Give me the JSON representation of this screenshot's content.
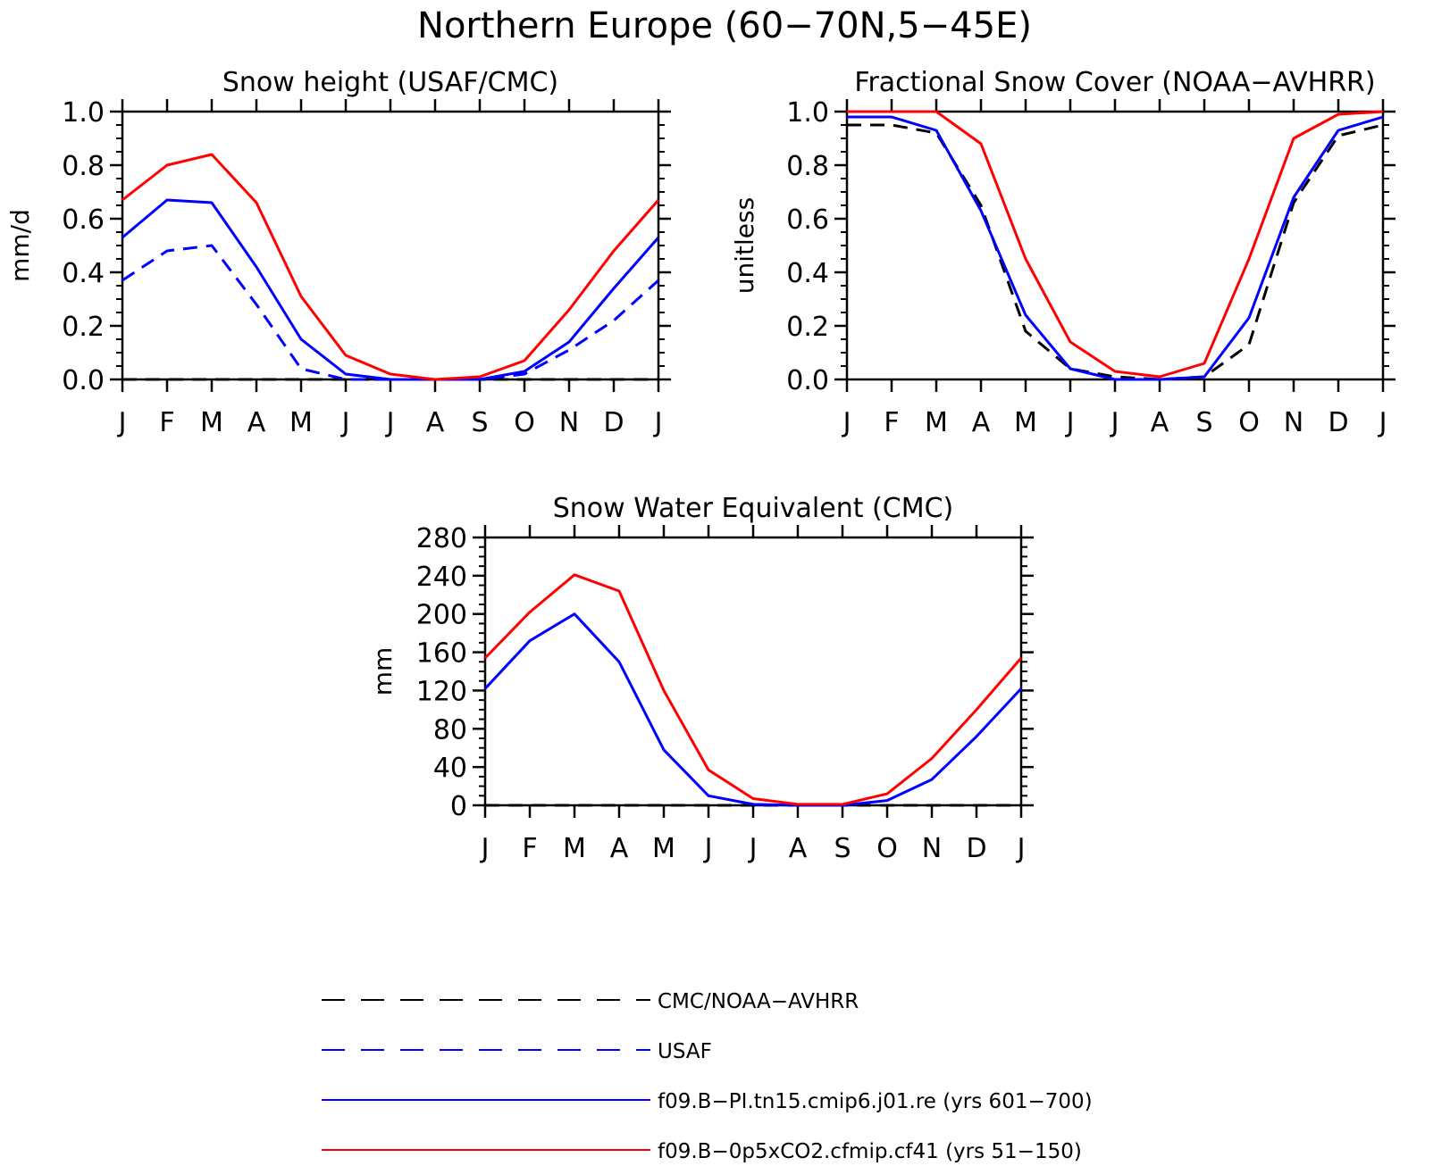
{
  "figure_title": "Northern Europe (60−70N,5−45E)",
  "months": [
    "J",
    "F",
    "M",
    "A",
    "M",
    "J",
    "J",
    "A",
    "S",
    "O",
    "N",
    "D",
    "J"
  ],
  "colors": {
    "observation": "#000000",
    "usaf": "#0000ff",
    "pi_control": "#0000ff",
    "half_co2": "#ff0000"
  },
  "legend": [
    {
      "label": "CMC/NOAA−AVHRR",
      "color": "#000000",
      "style": "dashed"
    },
    {
      "label": "USAF",
      "color": "#0000ff",
      "style": "dashed"
    },
    {
      "label": "f09.B−PI.tn15.cmip6.j01.re (yrs 601−700)",
      "color": "#0000ff",
      "style": "solid"
    },
    {
      "label": "f09.B−0p5xCO2.cfmip.cf41 (yrs 51−150)",
      "color": "#ff0000",
      "style": "solid"
    }
  ],
  "chart_data": [
    {
      "type": "line",
      "title": "Snow height (USAF/CMC)",
      "xlabel": "",
      "ylabel": "mm/d",
      "ylim": [
        0,
        1.0
      ],
      "yticks": [
        "0.0",
        "0.2",
        "0.4",
        "0.6",
        "0.8",
        "1.0"
      ],
      "ytick_values": [
        0,
        0.2,
        0.4,
        0.6,
        0.8,
        1.0
      ],
      "x": [
        "J",
        "F",
        "M",
        "A",
        "M",
        "J",
        "J",
        "A",
        "S",
        "O",
        "N",
        "D",
        "J"
      ],
      "series": [
        {
          "name": "CMC/NOAA−AVHRR",
          "color": "#000000",
          "style": "dashed",
          "values": [
            0,
            0,
            0,
            0,
            0,
            0,
            0,
            0,
            0,
            0,
            0,
            0,
            0
          ]
        },
        {
          "name": "USAF",
          "color": "#0000ff",
          "style": "dashed",
          "values": [
            0.37,
            0.48,
            0.5,
            0.28,
            0.04,
            0.0,
            0.0,
            0.0,
            0.0,
            0.02,
            0.11,
            0.22,
            0.37
          ]
        },
        {
          "name": "f09.B−PI.tn15.cmip6.j01.re (yrs 601−700)",
          "color": "#0000ff",
          "style": "solid",
          "values": [
            0.53,
            0.67,
            0.66,
            0.42,
            0.15,
            0.02,
            0.0,
            0.0,
            0.0,
            0.03,
            0.14,
            0.34,
            0.53
          ]
        },
        {
          "name": "f09.B−0p5xCO2.cfmip.cf41 (yrs 51−150)",
          "color": "#ff0000",
          "style": "solid",
          "values": [
            0.67,
            0.8,
            0.84,
            0.66,
            0.31,
            0.09,
            0.02,
            0.0,
            0.01,
            0.07,
            0.26,
            0.48,
            0.67
          ]
        }
      ]
    },
    {
      "type": "line",
      "title": "Fractional Snow Cover (NOAA−AVHRR)",
      "xlabel": "",
      "ylabel": "unitless",
      "ylim": [
        0,
        1.0
      ],
      "yticks": [
        "0.0",
        "0.2",
        "0.4",
        "0.6",
        "0.8",
        "1.0"
      ],
      "ytick_values": [
        0,
        0.2,
        0.4,
        0.6,
        0.8,
        1.0
      ],
      "x": [
        "J",
        "F",
        "M",
        "A",
        "M",
        "J",
        "J",
        "A",
        "S",
        "O",
        "N",
        "D",
        "J"
      ],
      "series": [
        {
          "name": "CMC/NOAA−AVHRR",
          "color": "#000000",
          "style": "dashed",
          "values": [
            0.95,
            0.95,
            0.92,
            0.65,
            0.18,
            0.04,
            0.01,
            0.0,
            0.01,
            0.13,
            0.66,
            0.91,
            0.95
          ]
        },
        {
          "name": "f09.B−PI.tn15.cmip6.j01.re (yrs 601−700)",
          "color": "#0000ff",
          "style": "solid",
          "values": [
            0.98,
            0.98,
            0.93,
            0.63,
            0.24,
            0.04,
            0.0,
            0.0,
            0.01,
            0.23,
            0.68,
            0.93,
            0.98
          ]
        },
        {
          "name": "f09.B−0p5xCO2.cfmip.cf41 (yrs 51−150)",
          "color": "#ff0000",
          "style": "solid",
          "values": [
            1.0,
            1.0,
            1.0,
            0.88,
            0.45,
            0.14,
            0.03,
            0.01,
            0.06,
            0.45,
            0.9,
            0.99,
            1.0
          ]
        }
      ]
    },
    {
      "type": "line",
      "title": "Snow Water Equivalent (CMC)",
      "xlabel": "",
      "ylabel": "mm",
      "ylim": [
        0,
        280
      ],
      "yticks": [
        "0",
        "40",
        "80",
        "120",
        "160",
        "200",
        "240",
        "280"
      ],
      "ytick_values": [
        0,
        40,
        80,
        120,
        160,
        200,
        240,
        280
      ],
      "x": [
        "J",
        "F",
        "M",
        "A",
        "M",
        "J",
        "J",
        "A",
        "S",
        "O",
        "N",
        "D",
        "J"
      ],
      "series": [
        {
          "name": "CMC/NOAA−AVHRR",
          "color": "#000000",
          "style": "dashed",
          "values": [
            0,
            0,
            0,
            0,
            0,
            0,
            0,
            0,
            0,
            0,
            0,
            0,
            0
          ]
        },
        {
          "name": "f09.B−PI.tn15.cmip6.j01.re (yrs 601−700)",
          "color": "#0000ff",
          "style": "solid",
          "values": [
            122,
            172,
            200,
            150,
            58,
            10,
            1,
            0,
            0,
            5,
            27,
            72,
            122
          ]
        },
        {
          "name": "f09.B−0p5xCO2.cfmip.cf41 (yrs 51−150)",
          "color": "#ff0000",
          "style": "solid",
          "values": [
            154,
            202,
            241,
            224,
            120,
            37,
            7,
            1,
            1,
            12,
            49,
            100,
            154
          ]
        }
      ]
    }
  ]
}
